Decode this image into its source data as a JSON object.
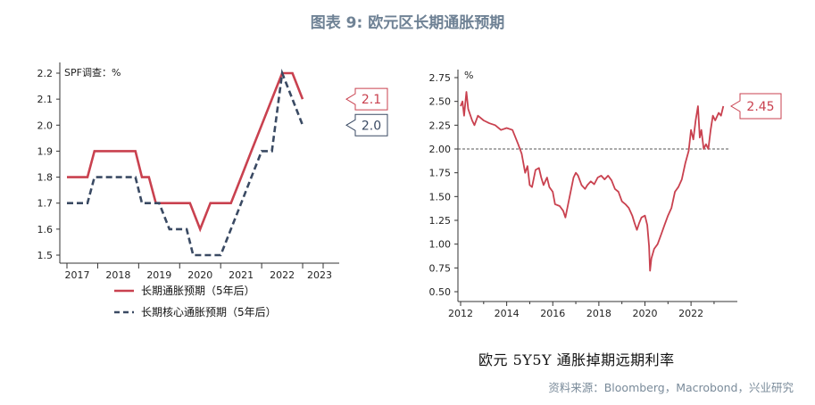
{
  "figure": {
    "title": "图表 9:   欧元区长期通胀预期",
    "source": "资料来源：Bloomberg，Macrobond，兴业研究"
  },
  "colors": {
    "red": "#c9414f",
    "navy": "#3a4a63",
    "axis": "#333333"
  },
  "chart_data": [
    {
      "type": "line",
      "title": "",
      "unit_label": "SPF调查：%",
      "xlabel": "",
      "ylabel": "",
      "categories": [
        "2017",
        "2018",
        "2019",
        "2020",
        "2021",
        "2022",
        "2023"
      ],
      "ylim": [
        1.5,
        2.2
      ],
      "yticks": [
        "2.2",
        "2.1",
        "2.0",
        "1.9",
        "1.8",
        "1.7",
        "1.6",
        "1.5"
      ],
      "grid": false,
      "legend": "bottom",
      "series": [
        {
          "name": "长期通胀预期（5年后）",
          "color": "red",
          "style": "solid",
          "points": [
            [
              2016.75,
              1.8
            ],
            [
              2017.25,
              1.8
            ],
            [
              2017.42,
              1.9
            ],
            [
              2018.0,
              1.9
            ],
            [
              2018.42,
              1.9
            ],
            [
              2018.58,
              1.8
            ],
            [
              2018.75,
              1.8
            ],
            [
              2018.92,
              1.7
            ],
            [
              2019.0,
              1.7
            ],
            [
              2019.75,
              1.7
            ],
            [
              2020.0,
              1.6
            ],
            [
              2020.25,
              1.7
            ],
            [
              2020.75,
              1.7
            ],
            [
              2021.0,
              1.8
            ],
            [
              2021.25,
              1.9
            ],
            [
              2021.5,
              2.0
            ],
            [
              2021.75,
              2.1
            ],
            [
              2022.0,
              2.2
            ],
            [
              2022.25,
              2.2
            ],
            [
              2022.5,
              2.1
            ]
          ],
          "end_label": "2.1"
        },
        {
          "name": "长期核心通胀预期（5年后）",
          "color": "navy",
          "style": "dashed",
          "points": [
            [
              2016.75,
              1.7
            ],
            [
              2017.25,
              1.7
            ],
            [
              2017.42,
              1.8
            ],
            [
              2018.42,
              1.8
            ],
            [
              2018.58,
              1.7
            ],
            [
              2019.0,
              1.7
            ],
            [
              2019.25,
              1.6
            ],
            [
              2019.67,
              1.6
            ],
            [
              2019.83,
              1.5
            ],
            [
              2020.5,
              1.5
            ],
            [
              2020.75,
              1.6
            ],
            [
              2021.0,
              1.7
            ],
            [
              2021.25,
              1.8
            ],
            [
              2021.5,
              1.9
            ],
            [
              2021.75,
              1.9
            ],
            [
              2022.0,
              2.2
            ],
            [
              2022.25,
              2.1
            ],
            [
              2022.5,
              2.0
            ]
          ],
          "end_label": "2.0"
        }
      ]
    },
    {
      "type": "line",
      "title": "欧元 5Y5Y 通胀掉期远期利率",
      "unit_label": "%",
      "xlabel": "",
      "ylabel": "",
      "xticks": [
        "2012",
        "2014",
        "2016",
        "2018",
        "2020",
        "2022"
      ],
      "xlim": [
        2012,
        2023.7
      ],
      "ylim": [
        0.5,
        2.75
      ],
      "yticks": [
        "2.75",
        "2.50",
        "2.25",
        "2.00",
        "1.75",
        "1.50",
        "1.25",
        "1.00",
        "0.75",
        "0.50"
      ],
      "grid": false,
      "reference_line": 2.0,
      "series": [
        {
          "name": "",
          "color": "red",
          "points": [
            [
              2012.0,
              2.45
            ],
            [
              2012.08,
              2.5
            ],
            [
              2012.15,
              2.35
            ],
            [
              2012.25,
              2.6
            ],
            [
              2012.33,
              2.42
            ],
            [
              2012.5,
              2.3
            ],
            [
              2012.6,
              2.25
            ],
            [
              2012.75,
              2.35
            ],
            [
              2013.0,
              2.3
            ],
            [
              2013.25,
              2.27
            ],
            [
              2013.5,
              2.25
            ],
            [
              2013.75,
              2.2
            ],
            [
              2014.0,
              2.22
            ],
            [
              2014.25,
              2.2
            ],
            [
              2014.5,
              2.05
            ],
            [
              2014.65,
              1.95
            ],
            [
              2014.8,
              1.75
            ],
            [
              2014.9,
              1.82
            ],
            [
              2015.0,
              1.62
            ],
            [
              2015.1,
              1.6
            ],
            [
              2015.25,
              1.78
            ],
            [
              2015.4,
              1.8
            ],
            [
              2015.5,
              1.7
            ],
            [
              2015.6,
              1.62
            ],
            [
              2015.75,
              1.7
            ],
            [
              2015.85,
              1.6
            ],
            [
              2016.0,
              1.55
            ],
            [
              2016.1,
              1.42
            ],
            [
              2016.3,
              1.4
            ],
            [
              2016.45,
              1.35
            ],
            [
              2016.55,
              1.28
            ],
            [
              2016.65,
              1.4
            ],
            [
              2016.8,
              1.58
            ],
            [
              2016.9,
              1.7
            ],
            [
              2017.0,
              1.75
            ],
            [
              2017.1,
              1.72
            ],
            [
              2017.25,
              1.62
            ],
            [
              2017.4,
              1.58
            ],
            [
              2017.5,
              1.62
            ],
            [
              2017.65,
              1.66
            ],
            [
              2017.8,
              1.63
            ],
            [
              2017.95,
              1.7
            ],
            [
              2018.1,
              1.72
            ],
            [
              2018.25,
              1.68
            ],
            [
              2018.4,
              1.72
            ],
            [
              2018.55,
              1.67
            ],
            [
              2018.7,
              1.58
            ],
            [
              2018.85,
              1.55
            ],
            [
              2019.0,
              1.45
            ],
            [
              2019.15,
              1.42
            ],
            [
              2019.3,
              1.38
            ],
            [
              2019.45,
              1.3
            ],
            [
              2019.55,
              1.22
            ],
            [
              2019.65,
              1.15
            ],
            [
              2019.75,
              1.22
            ],
            [
              2019.85,
              1.28
            ],
            [
              2020.0,
              1.3
            ],
            [
              2020.1,
              1.2
            ],
            [
              2020.18,
              0.98
            ],
            [
              2020.22,
              0.72
            ],
            [
              2020.28,
              0.85
            ],
            [
              2020.4,
              0.95
            ],
            [
              2020.55,
              1.0
            ],
            [
              2020.7,
              1.1
            ],
            [
              2020.85,
              1.2
            ],
            [
              2021.0,
              1.3
            ],
            [
              2021.15,
              1.38
            ],
            [
              2021.3,
              1.55
            ],
            [
              2021.45,
              1.6
            ],
            [
              2021.6,
              1.68
            ],
            [
              2021.75,
              1.85
            ],
            [
              2021.9,
              1.98
            ],
            [
              2022.0,
              2.2
            ],
            [
              2022.1,
              2.1
            ],
            [
              2022.2,
              2.3
            ],
            [
              2022.3,
              2.45
            ],
            [
              2022.38,
              2.12
            ],
            [
              2022.45,
              2.2
            ],
            [
              2022.55,
              2.0
            ],
            [
              2022.65,
              2.05
            ],
            [
              2022.75,
              2.0
            ],
            [
              2022.85,
              2.2
            ],
            [
              2022.95,
              2.35
            ],
            [
              2023.05,
              2.3
            ],
            [
              2023.2,
              2.38
            ],
            [
              2023.3,
              2.35
            ],
            [
              2023.4,
              2.45
            ]
          ],
          "end_label": "2.45"
        }
      ]
    }
  ]
}
